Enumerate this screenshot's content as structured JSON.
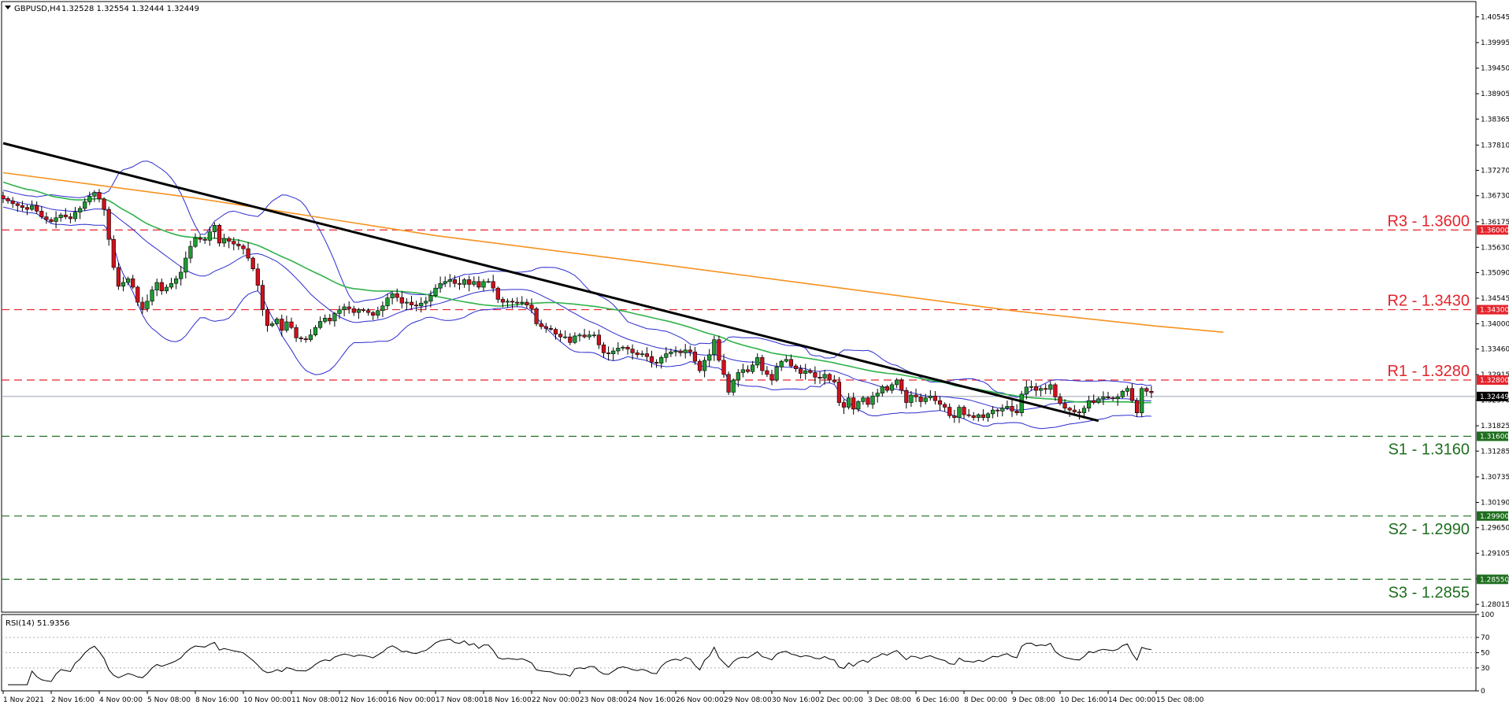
{
  "header": {
    "symbol": "GBPUSD,H4",
    "ohlc": "1.32528 1.32554 1.32444 1.32449",
    "current_price": "1.32449"
  },
  "rsi_panel": {
    "label": "RSI(14) 51.9356",
    "ticks": [
      "100",
      "70",
      "50",
      "30",
      "0"
    ],
    "tick_values": [
      100,
      70,
      50,
      30,
      0
    ],
    "dotted_levels": [
      70,
      50,
      30
    ]
  },
  "colors": {
    "resistance": "#e4242c",
    "support": "#1e6e1e",
    "ma_orange": "#f5921e",
    "ma_green": "#2fb24a",
    "bollinger": "#2b2bd0",
    "trendline": "#000000",
    "bull_candle": "#1f9a33",
    "bear_candle": "#d0101c",
    "rsi_line": "#000000"
  },
  "levels": [
    {
      "label": "R3 - 1.3600",
      "badge": "1.36000",
      "value": 1.36,
      "type": "resistance"
    },
    {
      "label": "R2 - 1.3430",
      "badge": "1.34300",
      "value": 1.343,
      "type": "resistance"
    },
    {
      "label": "R1 - 1.3280",
      "badge": "1.32800",
      "value": 1.328,
      "type": "resistance"
    },
    {
      "label": "S1 - 1.3160",
      "badge": "1.31600",
      "value": 1.316,
      "type": "support"
    },
    {
      "label": "S2 - 1.2990",
      "badge": "1.29900",
      "value": 1.299,
      "type": "support"
    },
    {
      "label": "S3 - 1.2855",
      "badge": "1.28550",
      "value": 1.2855,
      "type": "support"
    }
  ],
  "chart_data": {
    "type": "candlestick",
    "instrument": "GBPUSD",
    "timeframe": "H4",
    "ylim": [
      1.2785,
      1.4087
    ],
    "y_ticks": [
      "1.40545",
      "1.39995",
      "1.39450",
      "1.38905",
      "1.38365",
      "1.37810",
      "1.37270",
      "1.36730",
      "1.36175",
      "1.35630",
      "1.35090",
      "1.34545",
      "1.34000",
      "1.33460",
      "1.32915",
      "1.32370",
      "1.31825",
      "1.31285",
      "1.30735",
      "1.30190",
      "1.29650",
      "1.29105",
      "1.28560",
      "1.28015"
    ],
    "y_tick_values": [
      1.40545,
      1.39995,
      1.3945,
      1.38905,
      1.38365,
      1.3781,
      1.3727,
      1.3673,
      1.36175,
      1.3563,
      1.3509,
      1.34545,
      1.34,
      1.3346,
      1.32915,
      1.3237,
      1.31825,
      1.31285,
      1.30735,
      1.3019,
      1.2965,
      1.29105,
      1.2856,
      1.28015
    ],
    "x_ticks": [
      {
        "label": "1 Nov 2021",
        "bar": 0
      },
      {
        "label": "2 Nov 16:00",
        "bar": 10
      },
      {
        "label": "4 Nov 00:00",
        "bar": 20
      },
      {
        "label": "5 Nov 08:00",
        "bar": 30
      },
      {
        "label": "8 Nov 16:00",
        "bar": 40
      },
      {
        "label": "10 Nov 00:00",
        "bar": 50
      },
      {
        "label": "11 Nov 08:00",
        "bar": 60
      },
      {
        "label": "12 Nov 16:00",
        "bar": 70
      },
      {
        "label": "16 Nov 00:00",
        "bar": 80
      },
      {
        "label": "17 Nov 08:00",
        "bar": 90
      },
      {
        "label": "18 Nov 16:00",
        "bar": 100
      },
      {
        "label": "22 Nov 00:00",
        "bar": 110
      },
      {
        "label": "23 Nov 08:00",
        "bar": 120
      },
      {
        "label": "24 Nov 16:00",
        "bar": 130
      },
      {
        "label": "26 Nov 00:00",
        "bar": 140
      },
      {
        "label": "29 Nov 08:00",
        "bar": 150
      },
      {
        "label": "30 Nov 16:00",
        "bar": 160
      },
      {
        "label": "2 Dec 00:00",
        "bar": 170
      },
      {
        "label": "3 Dec 08:00",
        "bar": 180
      },
      {
        "label": "6 Dec 16:00",
        "bar": 190
      },
      {
        "label": "8 Dec 00:00",
        "bar": 200
      },
      {
        "label": "9 Dec 08:00",
        "bar": 210
      },
      {
        "label": "10 Dec 16:00",
        "bar": 220
      },
      {
        "label": "14 Dec 00:00",
        "bar": 230
      },
      {
        "label": "15 Dec 08:00",
        "bar": 240
      }
    ],
    "bars_total": 265,
    "close": [
      1.3667,
      1.3662,
      1.3656,
      1.3652,
      1.3648,
      1.3644,
      1.3652,
      1.364,
      1.3628,
      1.3622,
      1.3618,
      1.3626,
      1.3632,
      1.3628,
      1.3624,
      1.3638,
      1.3646,
      1.366,
      1.3672,
      1.368,
      1.3666,
      1.3644,
      1.358,
      1.352,
      1.348,
      1.3488,
      1.3496,
      1.3478,
      1.3446,
      1.3432,
      1.3448,
      1.3472,
      1.3488,
      1.347,
      1.3478,
      1.3486,
      1.3496,
      1.351,
      1.354,
      1.3565,
      1.3583,
      1.358,
      1.3578,
      1.3596,
      1.361,
      1.3572,
      1.3582,
      1.3576,
      1.357,
      1.3566,
      1.356,
      1.354,
      1.3517,
      1.3482,
      1.343,
      1.3396,
      1.34,
      1.341,
      1.3386,
      1.3404,
      1.3392,
      1.337,
      1.3368,
      1.3366,
      1.3376,
      1.3392,
      1.3405,
      1.3412,
      1.3406,
      1.3422,
      1.343,
      1.3436,
      1.3432,
      1.3424,
      1.343,
      1.3428,
      1.3424,
      1.3418,
      1.3428,
      1.3438,
      1.3455,
      1.3464,
      1.3456,
      1.3444,
      1.3446,
      1.344,
      1.3438,
      1.3444,
      1.3448,
      1.346,
      1.3476,
      1.3486,
      1.349,
      1.3494,
      1.3486,
      1.3484,
      1.3494,
      1.3484,
      1.349,
      1.3478,
      1.349,
      1.349,
      1.3476,
      1.3452,
      1.3446,
      1.3448,
      1.3446,
      1.3444,
      1.3446,
      1.344,
      1.3432,
      1.34,
      1.3394,
      1.339,
      1.3388,
      1.3378,
      1.3372,
      1.3372,
      1.336,
      1.3374,
      1.3376,
      1.3372,
      1.3376,
      1.3376,
      1.3355,
      1.3338,
      1.3336,
      1.3342,
      1.3348,
      1.335,
      1.3346,
      1.3338,
      1.3334,
      1.3336,
      1.333,
      1.3318,
      1.3316,
      1.3328,
      1.3336,
      1.334,
      1.3342,
      1.3338,
      1.3344,
      1.334,
      1.332,
      1.33,
      1.3322,
      1.3334,
      1.3366,
      1.3322,
      1.3292,
      1.3254,
      1.328,
      1.3296,
      1.3302,
      1.3298,
      1.3312,
      1.3328,
      1.33,
      1.3292,
      1.328,
      1.3308,
      1.332,
      1.3324,
      1.331,
      1.3304,
      1.3294,
      1.33,
      1.3296,
      1.3286,
      1.3284,
      1.3292,
      1.328,
      1.3276,
      1.3232,
      1.3222,
      1.3242,
      1.3218,
      1.3234,
      1.3242,
      1.3228,
      1.3246,
      1.3252,
      1.3266,
      1.3258,
      1.327,
      1.328,
      1.3258,
      1.3232,
      1.3248,
      1.3244,
      1.3234,
      1.3242,
      1.3246,
      1.3236,
      1.3228,
      1.3222,
      1.3204,
      1.32,
      1.3222,
      1.3206,
      1.3204,
      1.32,
      1.3206,
      1.32,
      1.3208,
      1.3216,
      1.3214,
      1.322,
      1.3224,
      1.3214,
      1.321,
      1.325,
      1.3265,
      1.3266,
      1.3258,
      1.3262,
      1.326,
      1.327,
      1.3244,
      1.323,
      1.322,
      1.3216,
      1.3212,
      1.321,
      1.322,
      1.3236,
      1.3232,
      1.324,
      1.3244,
      1.3242,
      1.324,
      1.3244,
      1.3256,
      1.3262,
      1.3236,
      1.321,
      1.3262,
      1.3256,
      1.3253
    ],
    "trendline": {
      "x": [
        0,
        228
      ],
      "y": [
        1.3785,
        1.3193
      ]
    },
    "ma_orange": {
      "x": [
        0,
        40,
        90,
        130,
        170,
        210,
        240,
        254
      ],
      "y": [
        1.3722,
        1.3668,
        1.3588,
        1.3536,
        1.3482,
        1.3428,
        1.3395,
        1.3382
      ]
    },
    "last_bar": 253
  }
}
